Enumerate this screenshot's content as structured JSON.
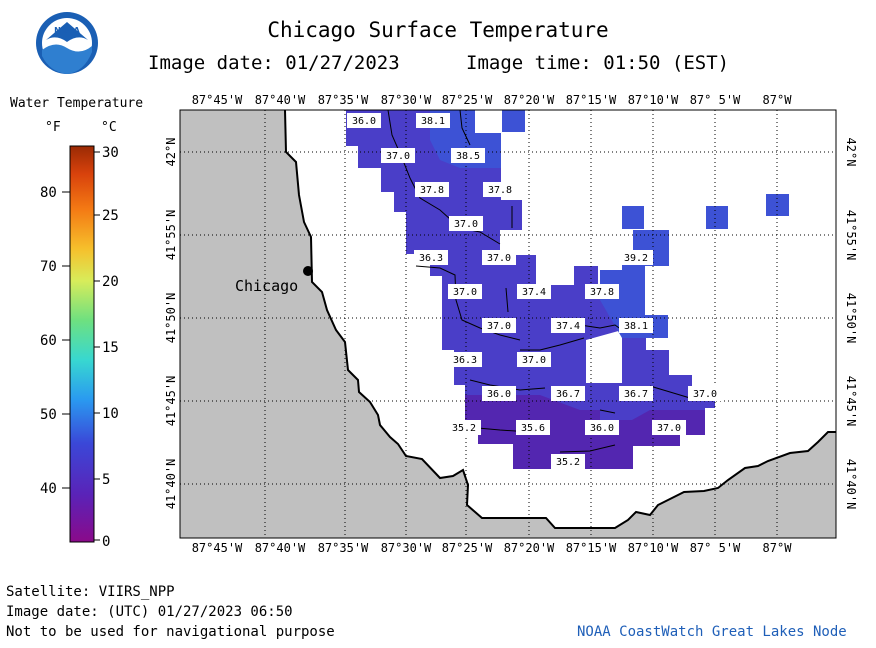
{
  "header": {
    "title": "Chicago Surface Temperature",
    "image_date_line": "Image date: 01/27/2023",
    "image_time_line": "Image time: 01:50 (EST)"
  },
  "logo": {
    "text": "NOAA",
    "icon": "noaa-logo-icon"
  },
  "legend": {
    "title": "Water Temperature",
    "unit_f": "°F",
    "unit_c": "°C",
    "f_ticks": [
      "80",
      "70",
      "60",
      "50",
      "40"
    ],
    "c_ticks": [
      "30",
      "25",
      "20",
      "15",
      "10",
      "5",
      "0"
    ]
  },
  "map": {
    "lon_labels": [
      "87°45'W",
      "87°40'W",
      "87°35'W",
      "87°30'W",
      "87°25'W",
      "87°20'W",
      "87°15'W",
      "87°10'W",
      "87° 5'W",
      "87°W"
    ],
    "lat_labels": [
      "42°N",
      "41°55'N",
      "41°50'N",
      "41°45'N",
      "41°40'N"
    ],
    "city_label": "Chicago",
    "temperature_labels": [
      "36.0",
      "38.1",
      "37.0",
      "38.5",
      "37.8",
      "37.8",
      "37.0",
      "36.3",
      "37.0",
      "39.2",
      "37.0",
      "37.4",
      "37.8",
      "37.0",
      "37.4",
      "38.1",
      "36.3",
      "37.0",
      "36.0",
      "36.7",
      "36.7",
      "37.0",
      "35.2",
      "35.6",
      "36.0",
      "37.0",
      "35.2"
    ],
    "colors": {
      "land": "#c0c0c0",
      "water": "#ffffff",
      "temp_warm": "#3d52d5",
      "temp_mid": "#4a3ec8",
      "temp_cold": "#5326b0"
    }
  },
  "footer": {
    "satellite": "Satellite: VIIRS_NPP",
    "utc_date": "Image date: (UTC) 01/27/2023  06:50",
    "disclaimer": "Not to be used for navigational purpose",
    "credit": "NOAA CoastWatch Great Lakes Node"
  }
}
